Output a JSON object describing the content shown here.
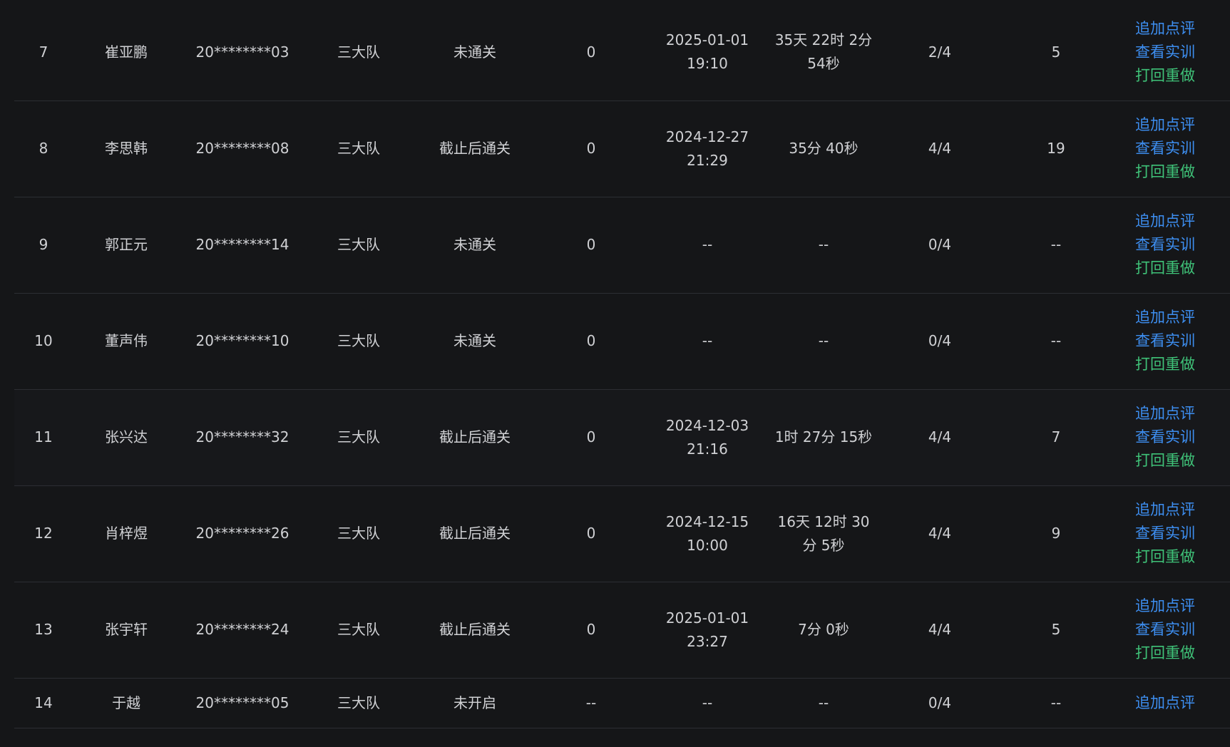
{
  "colors": {
    "background": "#151618",
    "row_divider": "#2c2e33",
    "text": "#d0d1d4",
    "status_fail": "#e8453a",
    "link_blue": "#3d8ef0",
    "link_green": "#3fc278"
  },
  "rows": [
    {
      "no": "7",
      "name": "崔亚鹏",
      "id": "20********03",
      "team": "三大队",
      "status": "未通关",
      "score": "0",
      "time_line1": "2025-01-01",
      "time_line2": "19:10",
      "duration_line1": "35天 22时 2分",
      "duration_line2": "54秒",
      "progress": "2/4",
      "count": "5",
      "action_comment": "追加点评",
      "action_view": "查看实训",
      "action_redo": "打回重做"
    },
    {
      "no": "8",
      "name": "李思韩",
      "id": "20********08",
      "team": "三大队",
      "status": "截止后通关",
      "score": "0",
      "time_line1": "2024-12-27",
      "time_line2": "21:29",
      "duration_line1": "35分 40秒",
      "duration_line2": "",
      "progress": "4/4",
      "count": "19",
      "action_comment": "追加点评",
      "action_view": "查看实训",
      "action_redo": "打回重做"
    },
    {
      "no": "9",
      "name": "郭正元",
      "id": "20********14",
      "team": "三大队",
      "status": "未通关",
      "score": "0",
      "time_line1": "--",
      "time_line2": "",
      "duration_line1": "--",
      "duration_line2": "",
      "progress": "0/4",
      "count": "--",
      "action_comment": "追加点评",
      "action_view": "查看实训",
      "action_redo": "打回重做"
    },
    {
      "no": "10",
      "name": "董声伟",
      "id": "20********10",
      "team": "三大队",
      "status": "未通关",
      "score": "0",
      "time_line1": "--",
      "time_line2": "",
      "duration_line1": "--",
      "duration_line2": "",
      "progress": "0/4",
      "count": "--",
      "action_comment": "追加点评",
      "action_view": "查看实训",
      "action_redo": "打回重做"
    },
    {
      "no": "11",
      "name": "张兴达",
      "id": "20********32",
      "team": "三大队",
      "status": "截止后通关",
      "score": "0",
      "time_line1": "2024-12-03",
      "time_line2": "21:16",
      "duration_line1": "1时 27分 15秒",
      "duration_line2": "",
      "progress": "4/4",
      "count": "7",
      "action_comment": "追加点评",
      "action_view": "查看实训",
      "action_redo": "打回重做"
    },
    {
      "no": "12",
      "name": "肖梓煜",
      "id": "20********26",
      "team": "三大队",
      "status": "截止后通关",
      "score": "0",
      "time_line1": "2024-12-15",
      "time_line2": "10:00",
      "duration_line1": "16天 12时 30",
      "duration_line2": "分 5秒",
      "progress": "4/4",
      "count": "9",
      "action_comment": "追加点评",
      "action_view": "查看实训",
      "action_redo": "打回重做"
    },
    {
      "no": "13",
      "name": "张宇轩",
      "id": "20********24",
      "team": "三大队",
      "status": "截止后通关",
      "score": "0",
      "time_line1": "2025-01-01",
      "time_line2": "23:27",
      "duration_line1": "7分 0秒",
      "duration_line2": "",
      "progress": "4/4",
      "count": "5",
      "action_comment": "追加点评",
      "action_view": "查看实训",
      "action_redo": "打回重做"
    },
    {
      "no": "14",
      "name": "于越",
      "id": "20********05",
      "team": "三大队",
      "status": "未开启",
      "score": "--",
      "time_line1": "--",
      "time_line2": "",
      "duration_line1": "--",
      "duration_line2": "",
      "progress": "0/4",
      "count": "--",
      "action_comment": "追加点评"
    }
  ]
}
